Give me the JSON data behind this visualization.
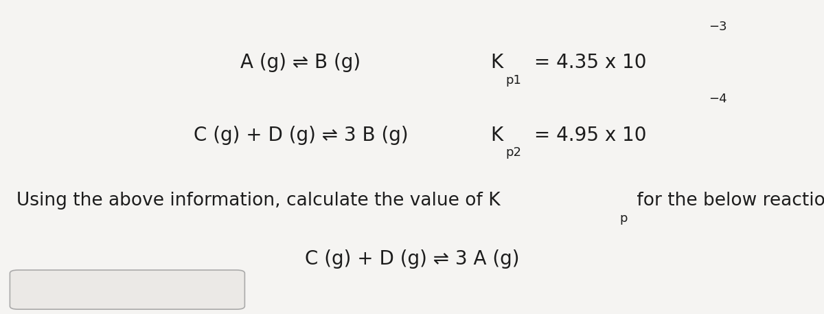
{
  "background_color": "#f5f4f2",
  "box_color": "#ebe9e6",
  "box_edge_color": "#aaaaaa",
  "text_color": "#1c1c1c",
  "figsize": [
    12.0,
    4.57
  ],
  "dpi": 100,
  "fs_main": 20,
  "fs_body": 19,
  "fs_sub": 13,
  "fs_sup": 13,
  "line1_eq": "A (g) ⇌ B (g)",
  "line2_eq": "C (g) + D (g) ⇌ 3 B (g)",
  "line3_text1": "Using the above information, calculate the value of K",
  "line3_sub": "p",
  "line3_text2": " for the below reaction:",
  "line4_eq": "C (g) + D (g) ⇌ 3 A (g)",
  "kp1_K": "K",
  "kp1_sub": "p1",
  "kp1_val": " = 4.35 x 10",
  "kp1_exp": "−3",
  "kp2_K": "K",
  "kp2_sub": "p2",
  "kp2_val": " = 4.95 x 10",
  "kp2_exp": "−4"
}
